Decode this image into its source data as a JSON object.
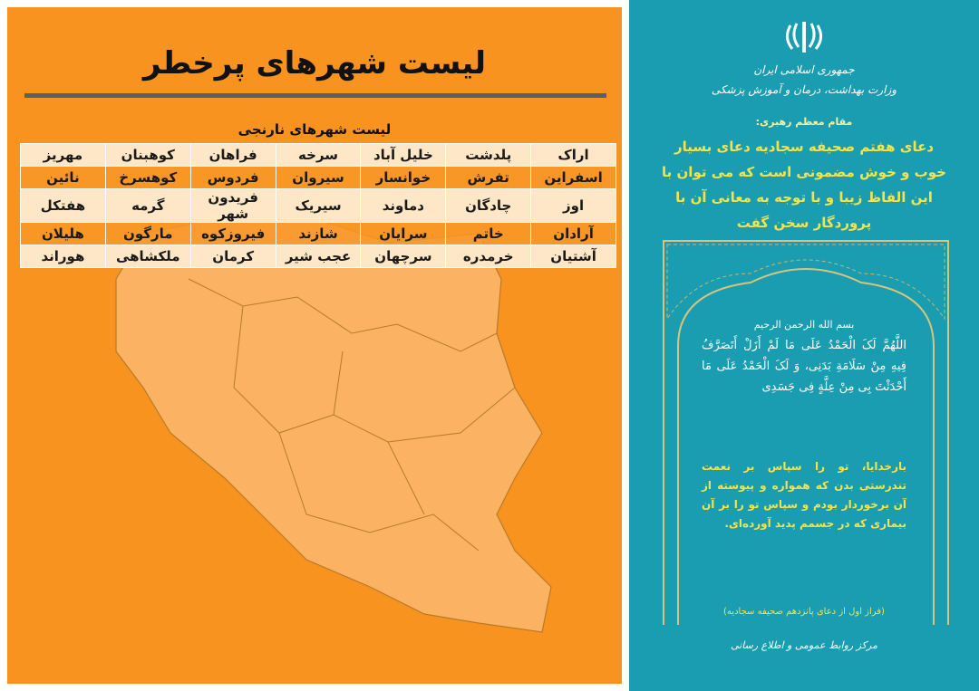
{
  "left": {
    "title": "لیست شهرهای پرخطر",
    "subtitle": "لیست شهرهای نارنجی",
    "cities": [
      [
        "اراک",
        "پلدشت",
        "خلیل آباد",
        "سرخه",
        "فراهان",
        "کوهبنان",
        "مهریز"
      ],
      [
        "اسفراین",
        "تفرش",
        "خوانسار",
        "سیروان",
        "فردوس",
        "کوهسرخ",
        "نائین"
      ],
      [
        "اوز",
        "چادگان",
        "دماوند",
        "سیریک",
        "فریدون شهر",
        "گرمه",
        "هفتکل"
      ],
      [
        "آرادان",
        "خاتم",
        "سرایان",
        "شازند",
        "فیروزکوه",
        "مارگون",
        "هلیلان"
      ],
      [
        "آشتیان",
        "خرمدره",
        "سرچهان",
        "عجب شیر",
        "کرمان",
        "ملکشاهی",
        "هوراند"
      ]
    ],
    "colors": {
      "background": "#f7931e",
      "map": "#fbb262",
      "row_light": "#fde7c6"
    }
  },
  "right": {
    "emblem": "iran-emblem-icon",
    "org_line1": "جمهوری اسلامی ایران",
    "org_line2": "وزارت بهداشت، درمان و آموزش پزشکی",
    "speaker": "مقام معظم رهبری:",
    "quote": "دعای هفتم صحیفه سجادیه دعای بسیار خوب و خوش مضمونی است که می توان با این الفاظ زیبا و با توجه به معانی آن با پروردگار سخن گفت",
    "basmala": "بسم الله الرحمن الرحیم",
    "arabic": "اللَّهُمَّ لَکَ الْحَمْدُ عَلَی مَا لَمْ أَزَلْ أَتَصَرَّفُ فِیهِ مِنْ سَلَامَةِ بَدَنِی، وَ لَکَ الْحَمْدُ عَلَی مَا أَحْدَثْتَ بِی مِنْ عِلَّةٍ فِی جَسَدِی",
    "translation": "بارخدایا، تو را سپاس بر نعمت تندرستی بدن که همواره و پیوسته از آن برخوردار بودم و سپاس تو را بر آن بیماری که در جسمم پدید آورده‌ای.",
    "source": "(فراز اول از دعای پانزدهم صحیفه سجادیه)",
    "footer": "مرکز روابط عمومی و اطلاع رسانی",
    "colors": {
      "background": "#1a9db0",
      "gold": "#f4e34a",
      "frame": "#d8c47a"
    }
  }
}
